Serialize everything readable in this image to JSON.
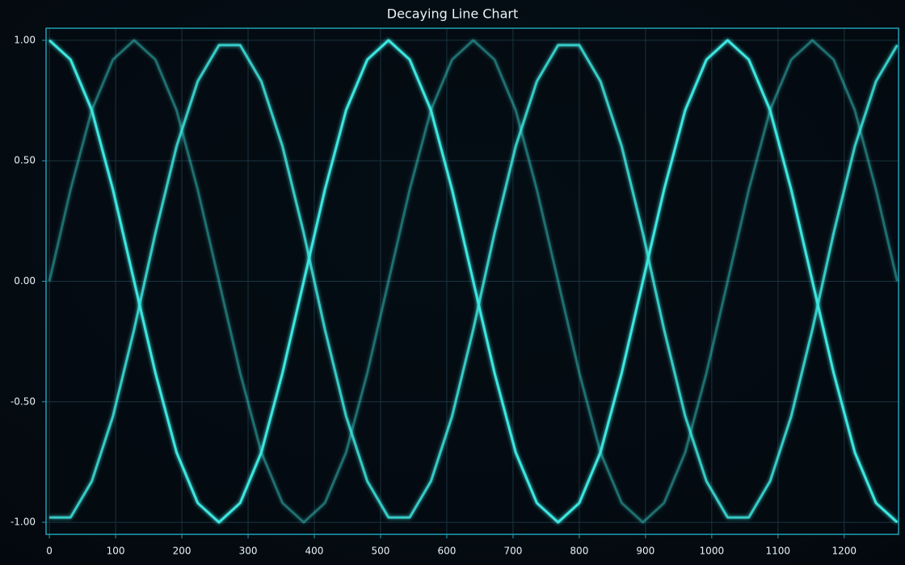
{
  "chart_data": {
    "type": "line",
    "title": "Decaying Line Chart",
    "x": [
      0,
      32,
      64,
      96,
      128,
      160,
      192,
      224,
      256,
      288,
      320,
      352,
      384,
      416,
      448,
      480,
      512,
      544,
      576,
      608,
      640,
      672,
      704,
      736,
      768,
      800,
      832,
      864,
      896,
      928,
      960,
      992,
      1024,
      1056,
      1088,
      1120,
      1152,
      1184,
      1216,
      1248,
      1280
    ],
    "series": [
      {
        "color": "#3ee6e0",
        "opacity": 0.35,
        "values": [
          0,
          0.38,
          0.71,
          0.92,
          1,
          0.92,
          0.71,
          0.38,
          0,
          -0.38,
          -0.71,
          -0.92,
          -1,
          -0.92,
          -0.71,
          -0.38,
          0,
          0.38,
          0.71,
          0.92,
          1,
          0.92,
          0.71,
          0.38,
          0,
          -0.38,
          -0.71,
          -0.92,
          -1,
          -0.92,
          -0.71,
          -0.38,
          0,
          0.38,
          0.71,
          0.92,
          1,
          0.92,
          0.71,
          0.38,
          0
        ]
      },
      {
        "color": "#3ee6e0",
        "opacity": 0.8,
        "values": [
          -0.98,
          -0.98,
          -0.83,
          -0.56,
          -0.2,
          0.2,
          0.56,
          0.83,
          0.98,
          0.98,
          0.83,
          0.56,
          0.2,
          -0.2,
          -0.56,
          -0.83,
          -0.98,
          -0.98,
          -0.83,
          -0.56,
          -0.2,
          0.2,
          0.56,
          0.83,
          0.98,
          0.98,
          0.83,
          0.56,
          0.2,
          -0.2,
          -0.56,
          -0.83,
          -0.98,
          -0.98,
          -0.83,
          -0.56,
          -0.2,
          0.2,
          0.56,
          0.83,
          0.98
        ]
      },
      {
        "color": "#3ee6e0",
        "opacity": 1,
        "values": [
          1,
          0.92,
          0.71,
          0.38,
          0,
          -0.38,
          -0.71,
          -0.92,
          -1,
          -0.92,
          -0.71,
          -0.38,
          0,
          0.38,
          0.71,
          0.92,
          1,
          0.92,
          0.71,
          0.38,
          0,
          -0.38,
          -0.71,
          -0.92,
          -1,
          -0.92,
          -0.71,
          -0.38,
          0,
          0.38,
          0.71,
          0.92,
          1,
          0.92,
          0.71,
          0.38,
          0,
          -0.38,
          -0.71,
          -0.92,
          -1
        ]
      }
    ],
    "xlim": [
      -5,
      1282
    ],
    "xticks": [
      0,
      100,
      200,
      300,
      400,
      500,
      600,
      700,
      800,
      900,
      1000,
      1100,
      1200
    ],
    "ylim": [
      -1.05,
      1.05
    ],
    "yticks": [
      {
        "value": -1,
        "label": "-1.00"
      },
      {
        "value": -0.5,
        "label": "-0.50"
      },
      {
        "value": 0,
        "label": "0.00"
      },
      {
        "value": 0.5,
        "label": "0.50"
      },
      {
        "value": 1,
        "label": "1.00"
      }
    ],
    "grid": true
  }
}
